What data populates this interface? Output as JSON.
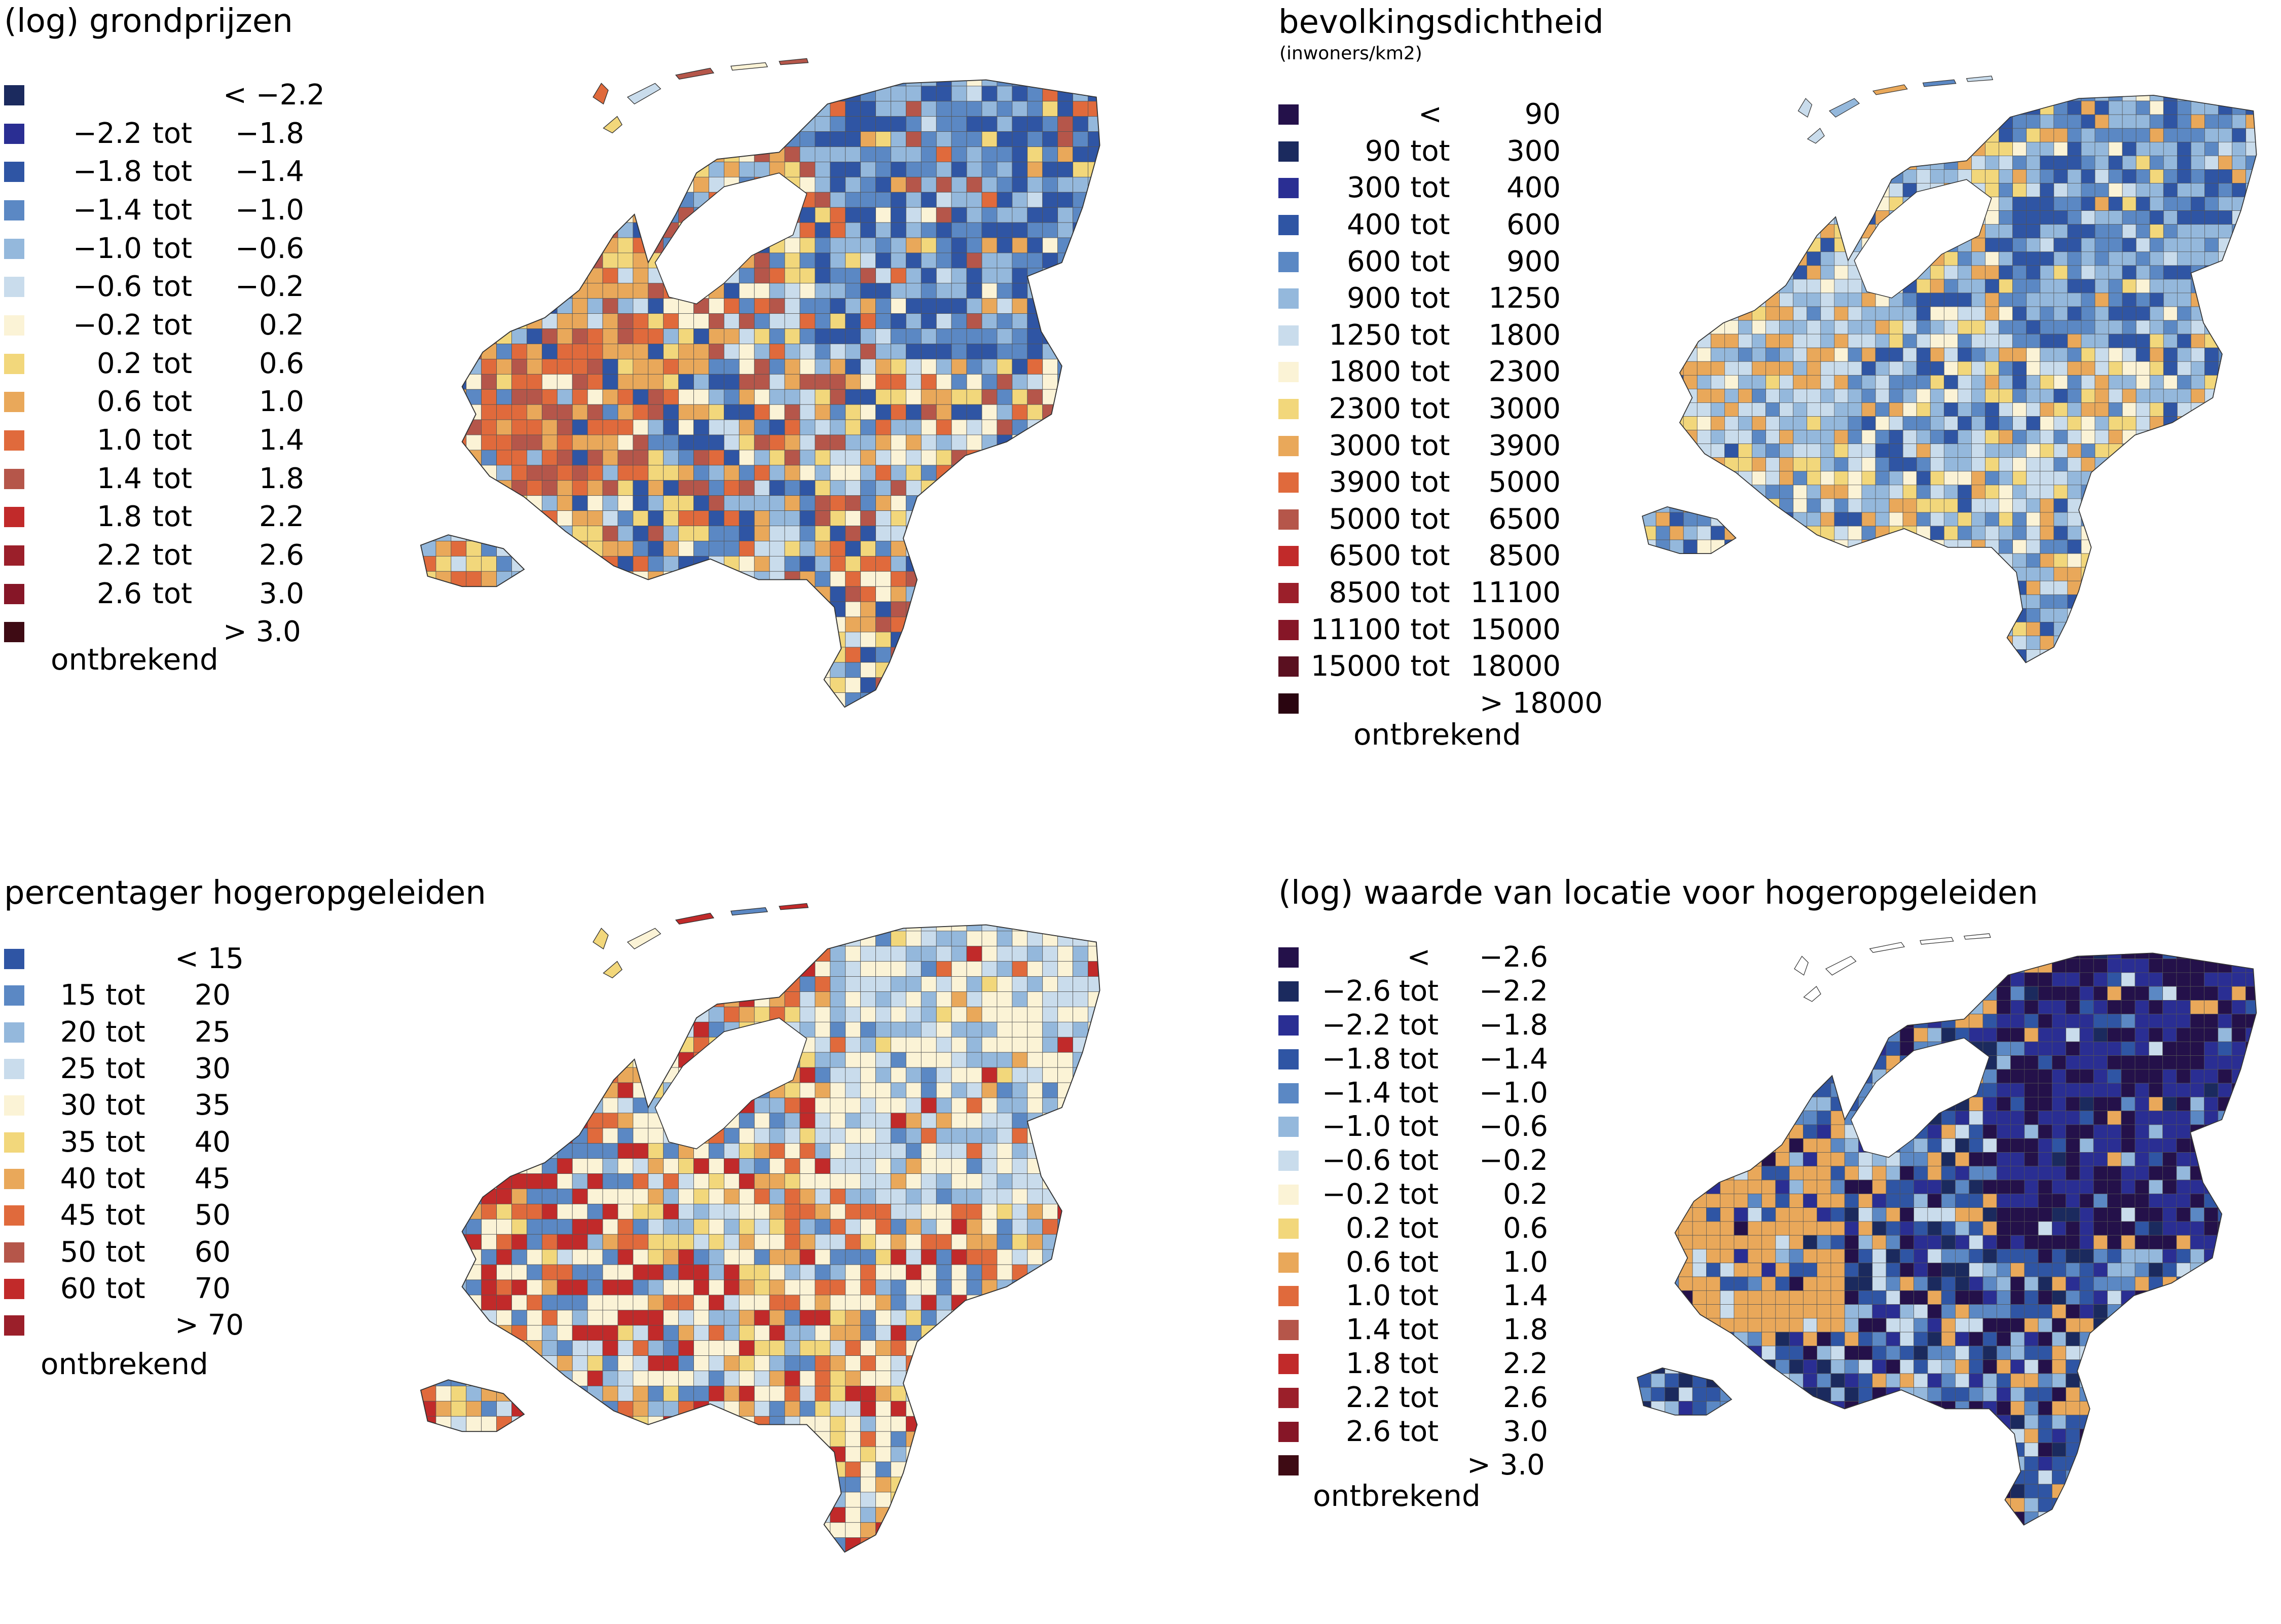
{
  "panels": [
    {
      "id": "grondprijzen",
      "title": "(log) grondprijzen",
      "subtitle": "",
      "classes": [
        {
          "low": "",
          "tot": "",
          "high": "< −2.2",
          "color": "#1b2a5e"
        },
        {
          "low": "−2.2",
          "tot": "tot",
          "high": "−1.8",
          "color": "#2a2e93"
        },
        {
          "low": "−1.8",
          "tot": "tot",
          "high": "−1.4",
          "color": "#2f55a4"
        },
        {
          "low": "−1.4",
          "tot": "tot",
          "high": "−1.0",
          "color": "#5b88c4"
        },
        {
          "low": "−1.0",
          "tot": "tot",
          "high": "−0.6",
          "color": "#94b8dc"
        },
        {
          "low": "−0.6",
          "tot": "tot",
          "high": "−0.2",
          "color": "#c9dcec"
        },
        {
          "low": "−0.2",
          "tot": "tot",
          "high": "0.2",
          "color": "#fbf3d6"
        },
        {
          "low": "0.2",
          "tot": "tot",
          "high": "0.6",
          "color": "#f2d77b"
        },
        {
          "low": "0.6",
          "tot": "tot",
          "high": "1.0",
          "color": "#e9a85a"
        },
        {
          "low": "1.0",
          "tot": "tot",
          "high": "1.4",
          "color": "#e06a3c"
        },
        {
          "low": "1.4",
          "tot": "tot",
          "high": "1.8",
          "color": "#b5564a"
        },
        {
          "low": "1.8",
          "tot": "tot",
          "high": "2.2",
          "color": "#c12a2a"
        },
        {
          "low": "2.2",
          "tot": "tot",
          "high": "2.6",
          "color": "#9b1f2a"
        },
        {
          "low": "2.6",
          "tot": "tot",
          "high": "3.0",
          "color": "#861627"
        },
        {
          "low": "",
          "tot": "",
          "high": "> 3.0",
          "color": "#3e0b14"
        }
      ],
      "missing_label": "ontbrekend",
      "missing_color": "#ffffff",
      "map_palette": [
        "#94b8dc",
        "#5b88c4",
        "#2f55a4",
        "#c9dcec",
        "#fbf3d6",
        "#f2d77b",
        "#e9a85a",
        "#e06a3c",
        "#b5564a"
      ]
    },
    {
      "id": "bevolkingsdichtheid",
      "title": "bevolkingsdichtheid",
      "subtitle": "(inwoners/km2)",
      "classes": [
        {
          "low": "",
          "tot": "<",
          "high": "90",
          "color": "#24114a"
        },
        {
          "low": "90",
          "tot": "tot",
          "high": "300",
          "color": "#1b2a5e"
        },
        {
          "low": "300",
          "tot": "tot",
          "high": "400",
          "color": "#2a2e93"
        },
        {
          "low": "400",
          "tot": "tot",
          "high": "600",
          "color": "#2f55a4"
        },
        {
          "low": "600",
          "tot": "tot",
          "high": "900",
          "color": "#5b88c4"
        },
        {
          "low": "900",
          "tot": "tot",
          "high": "1250",
          "color": "#94b8dc"
        },
        {
          "low": "1250",
          "tot": "tot",
          "high": "1800",
          "color": "#c9dcec"
        },
        {
          "low": "1800",
          "tot": "tot",
          "high": "2300",
          "color": "#fbf3d6"
        },
        {
          "low": "2300",
          "tot": "tot",
          "high": "3000",
          "color": "#f2d77b"
        },
        {
          "low": "3000",
          "tot": "tot",
          "high": "3900",
          "color": "#e9a85a"
        },
        {
          "low": "3900",
          "tot": "tot",
          "high": "5000",
          "color": "#e06a3c"
        },
        {
          "low": "5000",
          "tot": "tot",
          "high": "6500",
          "color": "#b5564a"
        },
        {
          "low": "6500",
          "tot": "tot",
          "high": "8500",
          "color": "#c12a2a"
        },
        {
          "low": "8500",
          "tot": "tot",
          "high": "11100",
          "color": "#9b1f2a"
        },
        {
          "low": "11100",
          "tot": "tot",
          "high": "15000",
          "color": "#861627"
        },
        {
          "low": "15000",
          "tot": "tot",
          "high": "18000",
          "color": "#5a1020"
        },
        {
          "low": "",
          "tot": "",
          "high": "> 18000",
          "color": "#2a0510"
        }
      ],
      "missing_label": "ontbrekend",
      "missing_color": "#ffffff",
      "map_palette": [
        "#94b8dc",
        "#5b88c4",
        "#2f55a4",
        "#c9dcec",
        "#fbf3d6",
        "#f2d77b",
        "#e9a85a",
        "#94b8dc",
        "#c9dcec"
      ]
    },
    {
      "id": "hogeropgeleiden",
      "title": "percentager hogeropgeleiden",
      "subtitle": "",
      "classes": [
        {
          "low": "",
          "tot": "",
          "high": "< 15",
          "color": "#2f55a4"
        },
        {
          "low": "15",
          "tot": "tot",
          "high": "20",
          "color": "#5b88c4"
        },
        {
          "low": "20",
          "tot": "tot",
          "high": "25",
          "color": "#94b8dc"
        },
        {
          "low": "25",
          "tot": "tot",
          "high": "30",
          "color": "#c9dcec"
        },
        {
          "low": "30",
          "tot": "tot",
          "high": "35",
          "color": "#fbf3d6"
        },
        {
          "low": "35",
          "tot": "tot",
          "high": "40",
          "color": "#f2d77b"
        },
        {
          "low": "40",
          "tot": "tot",
          "high": "45",
          "color": "#e9a85a"
        },
        {
          "low": "45",
          "tot": "tot",
          "high": "50",
          "color": "#e06a3c"
        },
        {
          "low": "50",
          "tot": "tot",
          "high": "60",
          "color": "#b5564a"
        },
        {
          "low": "60",
          "tot": "tot",
          "high": "70",
          "color": "#c12a2a"
        },
        {
          "low": "",
          "tot": "",
          "high": "> 70",
          "color": "#9b1f2a"
        }
      ],
      "missing_label": "ontbrekend",
      "missing_color": "#ffffff",
      "map_palette": [
        "#94b8dc",
        "#c9dcec",
        "#fbf3d6",
        "#f2d77b",
        "#e9a85a",
        "#e06a3c",
        "#5b88c4",
        "#c12a2a",
        "#fbf3d6"
      ]
    },
    {
      "id": "waarde-locatie",
      "title": "(log) waarde van locatie voor hogeropgeleiden",
      "subtitle": "",
      "classes": [
        {
          "low": "",
          "tot": "<",
          "high": "−2.6",
          "color": "#24114a"
        },
        {
          "low": "−2.6",
          "tot": "tot",
          "high": "−2.2",
          "color": "#1b2a5e"
        },
        {
          "low": "−2.2",
          "tot": "tot",
          "high": "−1.8",
          "color": "#2a2e93"
        },
        {
          "low": "−1.8",
          "tot": "tot",
          "high": "−1.4",
          "color": "#2f55a4"
        },
        {
          "low": "−1.4",
          "tot": "tot",
          "high": "−1.0",
          "color": "#5b88c4"
        },
        {
          "low": "−1.0",
          "tot": "tot",
          "high": "−0.6",
          "color": "#94b8dc"
        },
        {
          "low": "−0.6",
          "tot": "tot",
          "high": "−0.2",
          "color": "#c9dcec"
        },
        {
          "low": "−0.2",
          "tot": "tot",
          "high": "0.2",
          "color": "#fbf3d6"
        },
        {
          "low": "0.2",
          "tot": "tot",
          "high": "0.6",
          "color": "#f2d77b"
        },
        {
          "low": "0.6",
          "tot": "tot",
          "high": "1.0",
          "color": "#e9a85a"
        },
        {
          "low": "1.0",
          "tot": "tot",
          "high": "1.4",
          "color": "#e06a3c"
        },
        {
          "low": "1.4",
          "tot": "tot",
          "high": "1.8",
          "color": "#b5564a"
        },
        {
          "low": "1.8",
          "tot": "tot",
          "high": "2.2",
          "color": "#c12a2a"
        },
        {
          "low": "2.2",
          "tot": "tot",
          "high": "2.6",
          "color": "#9b1f2a"
        },
        {
          "low": "2.6",
          "tot": "tot",
          "high": "3.0",
          "color": "#861627"
        },
        {
          "low": "",
          "tot": "",
          "high": "> 3.0",
          "color": "#3e0b14"
        }
      ],
      "missing_label": "ontbrekend",
      "missing_color": "#ffffff",
      "map_palette": [
        "#2a2e93",
        "#1b2a5e",
        "#2f55a4",
        "#5b88c4",
        "#24114a",
        "#94b8dc",
        "#e9a85a",
        "#c9dcec",
        "#2f55a4"
      ]
    }
  ]
}
